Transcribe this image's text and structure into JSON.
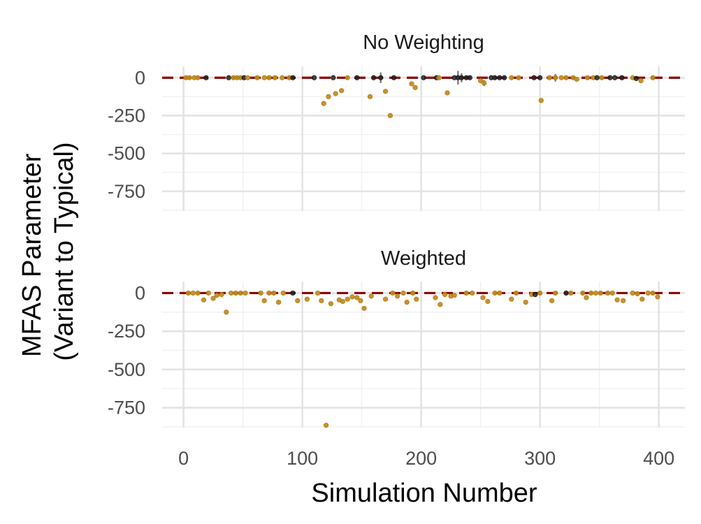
{
  "chart_data": {
    "type": "scatter",
    "xlabel": "Simulation Number",
    "ylabel": [
      "MFAS Parameter",
      "(Variant to Typical)"
    ],
    "xlim": [
      -18,
      422
    ],
    "x_ticks": [
      0,
      100,
      200,
      300,
      400
    ],
    "x_tick_labels": [
      "0",
      "100",
      "200",
      "300",
      "400"
    ],
    "ylim": [
      -880,
      75
    ],
    "y_ticks": [
      0,
      -250,
      -500,
      -750
    ],
    "y_tick_labels": [
      "0",
      "-250",
      "-500",
      "-750"
    ],
    "reference_line": {
      "y": 0,
      "style": "dashed",
      "color": "#8b0000"
    },
    "grid": true,
    "colors": {
      "gold": "#c28a1b",
      "black": "#222222",
      "whisker": "#7f7f7f"
    },
    "panels": [
      {
        "title": "No Weighting",
        "points": [
          {
            "x": 2,
            "y": 0,
            "c": "gold"
          },
          {
            "x": 5,
            "y": 0,
            "c": "gold"
          },
          {
            "x": 9,
            "y": 0,
            "c": "gold"
          },
          {
            "x": 12,
            "y": 0,
            "c": "gold"
          },
          {
            "x": 19,
            "y": 0,
            "c": "black"
          },
          {
            "x": 38,
            "y": 0,
            "c": "black"
          },
          {
            "x": 42,
            "y": 0,
            "c": "gold"
          },
          {
            "x": 45,
            "y": 0,
            "c": "gold"
          },
          {
            "x": 48,
            "y": 0,
            "c": "gold"
          },
          {
            "x": 51,
            "y": 0,
            "c": "black"
          },
          {
            "x": 54,
            "y": 0,
            "c": "gold"
          },
          {
            "x": 62,
            "y": 0,
            "c": "gold"
          },
          {
            "x": 68,
            "y": 0,
            "c": "gold"
          },
          {
            "x": 72,
            "y": 0,
            "c": "gold"
          },
          {
            "x": 77,
            "y": 0,
            "c": "gold"
          },
          {
            "x": 83,
            "y": 0,
            "c": "gold"
          },
          {
            "x": 89,
            "y": 0,
            "c": "gold"
          },
          {
            "x": 92,
            "y": 0,
            "c": "black"
          },
          {
            "x": 110,
            "y": 0,
            "c": "black"
          },
          {
            "x": 118,
            "y": -170,
            "c": "gold"
          },
          {
            "x": 122,
            "y": -125,
            "c": "gold"
          },
          {
            "x": 126,
            "y": 0,
            "c": "black"
          },
          {
            "x": 128,
            "y": -105,
            "c": "gold"
          },
          {
            "x": 133,
            "y": -85,
            "c": "gold"
          },
          {
            "x": 138,
            "y": 0,
            "c": "gold"
          },
          {
            "x": 146,
            "y": 0,
            "c": "black"
          },
          {
            "x": 157,
            "y": -125,
            "c": "gold"
          },
          {
            "x": 160,
            "y": 0,
            "c": "black"
          },
          {
            "x": 166,
            "y": 0,
            "c": "black",
            "err": 35
          },
          {
            "x": 170,
            "y": -90,
            "c": "gold"
          },
          {
            "x": 174,
            "y": -250,
            "c": "gold"
          },
          {
            "x": 177,
            "y": 0,
            "c": "black"
          },
          {
            "x": 192,
            "y": -40,
            "c": "gold"
          },
          {
            "x": 195,
            "y": -65,
            "c": "gold"
          },
          {
            "x": 202,
            "y": 0,
            "c": "black"
          },
          {
            "x": 213,
            "y": 0,
            "c": "black"
          },
          {
            "x": 215,
            "y": 0,
            "c": "gold"
          },
          {
            "x": 222,
            "y": -100,
            "c": "gold"
          },
          {
            "x": 228,
            "y": 0,
            "c": "black"
          },
          {
            "x": 231,
            "y": 0,
            "c": "black",
            "err": 45
          },
          {
            "x": 234,
            "y": 0,
            "c": "black",
            "err": 30
          },
          {
            "x": 238,
            "y": 0,
            "c": "black"
          },
          {
            "x": 241,
            "y": 0,
            "c": "black"
          },
          {
            "x": 250,
            "y": -20,
            "c": "gold"
          },
          {
            "x": 253,
            "y": -35,
            "c": "gold",
            "err": 20
          },
          {
            "x": 259,
            "y": 0,
            "c": "black"
          },
          {
            "x": 262,
            "y": 0,
            "c": "black"
          },
          {
            "x": 266,
            "y": 0,
            "c": "black"
          },
          {
            "x": 270,
            "y": 0,
            "c": "black"
          },
          {
            "x": 276,
            "y": 0,
            "c": "gold"
          },
          {
            "x": 282,
            "y": 0,
            "c": "gold"
          },
          {
            "x": 295,
            "y": 0,
            "c": "black"
          },
          {
            "x": 300,
            "y": 0,
            "c": "black"
          },
          {
            "x": 301,
            "y": -150,
            "c": "gold"
          },
          {
            "x": 308,
            "y": 0,
            "c": "gold"
          },
          {
            "x": 313,
            "y": 0,
            "c": "gold",
            "err": 25
          },
          {
            "x": 318,
            "y": 0,
            "c": "gold"
          },
          {
            "x": 322,
            "y": 0,
            "c": "gold"
          },
          {
            "x": 328,
            "y": 0,
            "c": "gold"
          },
          {
            "x": 331,
            "y": -10,
            "c": "gold"
          },
          {
            "x": 340,
            "y": 0,
            "c": "gold"
          },
          {
            "x": 345,
            "y": 0,
            "c": "gold"
          },
          {
            "x": 348,
            "y": 0,
            "c": "black"
          },
          {
            "x": 352,
            "y": 0,
            "c": "gold"
          },
          {
            "x": 359,
            "y": 0,
            "c": "black"
          },
          {
            "x": 363,
            "y": 0,
            "c": "black"
          },
          {
            "x": 369,
            "y": 0,
            "c": "black"
          },
          {
            "x": 378,
            "y": 0,
            "c": "gold"
          },
          {
            "x": 381,
            "y": -5,
            "c": "black"
          },
          {
            "x": 385,
            "y": -20,
            "c": "gold"
          },
          {
            "x": 395,
            "y": 0,
            "c": "gold"
          }
        ]
      },
      {
        "title": "Weighted",
        "points": [
          {
            "x": 4,
            "y": 0,
            "c": "gold"
          },
          {
            "x": 8,
            "y": 0,
            "c": "gold"
          },
          {
            "x": 12,
            "y": 0,
            "c": "gold"
          },
          {
            "x": 17,
            "y": -45,
            "c": "gold"
          },
          {
            "x": 21,
            "y": 0,
            "c": "gold"
          },
          {
            "x": 25,
            "y": -35,
            "c": "gold"
          },
          {
            "x": 28,
            "y": -15,
            "c": "gold"
          },
          {
            "x": 32,
            "y": -10,
            "c": "gold"
          },
          {
            "x": 36,
            "y": -125,
            "c": "gold"
          },
          {
            "x": 40,
            "y": 0,
            "c": "gold"
          },
          {
            "x": 44,
            "y": 0,
            "c": "gold"
          },
          {
            "x": 48,
            "y": 0,
            "c": "gold"
          },
          {
            "x": 52,
            "y": 0,
            "c": "gold"
          },
          {
            "x": 65,
            "y": 0,
            "c": "gold"
          },
          {
            "x": 68,
            "y": -50,
            "c": "gold"
          },
          {
            "x": 72,
            "y": 0,
            "c": "gold"
          },
          {
            "x": 76,
            "y": 0,
            "c": "gold"
          },
          {
            "x": 80,
            "y": -60,
            "c": "gold"
          },
          {
            "x": 84,
            "y": 0,
            "c": "gold"
          },
          {
            "x": 92,
            "y": 0,
            "c": "black"
          },
          {
            "x": 96,
            "y": -50,
            "c": "gold"
          },
          {
            "x": 104,
            "y": -40,
            "c": "gold"
          },
          {
            "x": 113,
            "y": 0,
            "c": "gold"
          },
          {
            "x": 116,
            "y": -50,
            "c": "gold"
          },
          {
            "x": 120,
            "y": -865,
            "c": "gold"
          },
          {
            "x": 124,
            "y": -70,
            "c": "gold"
          },
          {
            "x": 131,
            "y": -45,
            "c": "gold"
          },
          {
            "x": 134,
            "y": -55,
            "c": "gold"
          },
          {
            "x": 138,
            "y": -40,
            "c": "gold"
          },
          {
            "x": 142,
            "y": -25,
            "c": "gold"
          },
          {
            "x": 146,
            "y": -30,
            "c": "gold"
          },
          {
            "x": 149,
            "y": -50,
            "c": "gold"
          },
          {
            "x": 152,
            "y": -100,
            "c": "gold"
          },
          {
            "x": 158,
            "y": -20,
            "c": "gold"
          },
          {
            "x": 170,
            "y": -40,
            "c": "gold"
          },
          {
            "x": 176,
            "y": 0,
            "c": "gold"
          },
          {
            "x": 180,
            "y": -20,
            "c": "gold"
          },
          {
            "x": 185,
            "y": 0,
            "c": "gold"
          },
          {
            "x": 188,
            "y": -60,
            "c": "gold"
          },
          {
            "x": 193,
            "y": 0,
            "c": "gold"
          },
          {
            "x": 196,
            "y": -40,
            "c": "gold"
          },
          {
            "x": 212,
            "y": -30,
            "c": "gold"
          },
          {
            "x": 216,
            "y": -75,
            "c": "gold"
          },
          {
            "x": 220,
            "y": -10,
            "c": "gold"
          },
          {
            "x": 225,
            "y": -20,
            "c": "gold"
          },
          {
            "x": 228,
            "y": -15,
            "c": "gold"
          },
          {
            "x": 238,
            "y": 0,
            "c": "gold"
          },
          {
            "x": 243,
            "y": 0,
            "c": "gold"
          },
          {
            "x": 252,
            "y": -30,
            "c": "gold"
          },
          {
            "x": 256,
            "y": -55,
            "c": "gold"
          },
          {
            "x": 262,
            "y": 0,
            "c": "gold"
          },
          {
            "x": 266,
            "y": 0,
            "c": "gold"
          },
          {
            "x": 276,
            "y": -40,
            "c": "gold"
          },
          {
            "x": 280,
            "y": 0,
            "c": "gold"
          },
          {
            "x": 288,
            "y": -60,
            "c": "gold"
          },
          {
            "x": 293,
            "y": -10,
            "c": "gold"
          },
          {
            "x": 296,
            "y": -10,
            "c": "black"
          },
          {
            "x": 300,
            "y": 0,
            "c": "gold"
          },
          {
            "x": 310,
            "y": -50,
            "c": "gold"
          },
          {
            "x": 313,
            "y": 0,
            "c": "gold"
          },
          {
            "x": 322,
            "y": 0,
            "c": "black"
          },
          {
            "x": 326,
            "y": 0,
            "c": "gold"
          },
          {
            "x": 336,
            "y": 0,
            "c": "gold"
          },
          {
            "x": 339,
            "y": -30,
            "c": "gold"
          },
          {
            "x": 343,
            "y": 0,
            "c": "gold"
          },
          {
            "x": 347,
            "y": 0,
            "c": "gold"
          },
          {
            "x": 351,
            "y": 0,
            "c": "gold"
          },
          {
            "x": 357,
            "y": 0,
            "c": "gold"
          },
          {
            "x": 361,
            "y": 0,
            "c": "gold"
          },
          {
            "x": 365,
            "y": -45,
            "c": "gold"
          },
          {
            "x": 370,
            "y": -50,
            "c": "gold"
          },
          {
            "x": 378,
            "y": 0,
            "c": "gold"
          },
          {
            "x": 382,
            "y": -5,
            "c": "gold"
          },
          {
            "x": 386,
            "y": -40,
            "c": "gold"
          },
          {
            "x": 391,
            "y": 0,
            "c": "gold"
          },
          {
            "x": 395,
            "y": 0,
            "c": "gold"
          },
          {
            "x": 399,
            "y": -25,
            "c": "gold"
          }
        ]
      }
    ]
  }
}
